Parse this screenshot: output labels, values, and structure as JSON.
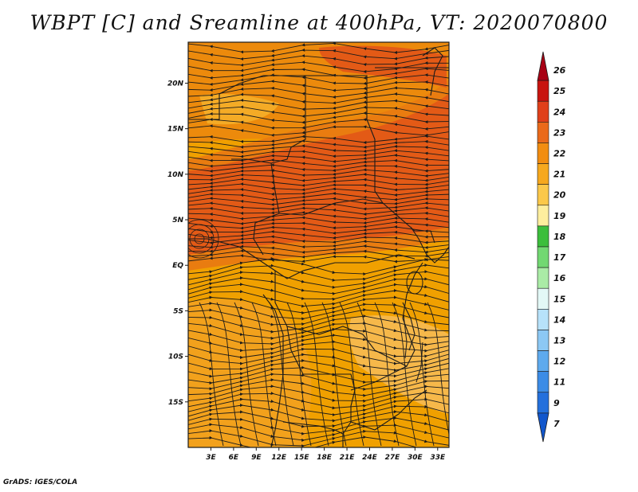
{
  "title": "WBPT [C] and Sreamline at 400hPa, VT: 2020070800",
  "footer": "GrADS: IGES/COLA",
  "map": {
    "lon_range": [
      0,
      34.5
    ],
    "lat_range": [
      -20,
      24.5
    ],
    "x_ticks": [
      {
        "value": 3,
        "label": "3E"
      },
      {
        "value": 6,
        "label": "6E"
      },
      {
        "value": 9,
        "label": "9E"
      },
      {
        "value": 12,
        "label": "12E"
      },
      {
        "value": 15,
        "label": "15E"
      },
      {
        "value": 18,
        "label": "18E"
      },
      {
        "value": 21,
        "label": "21E"
      },
      {
        "value": 24,
        "label": "24E"
      },
      {
        "value": 27,
        "label": "27E"
      },
      {
        "value": 30,
        "label": "30E"
      },
      {
        "value": 33,
        "label": "33E"
      }
    ],
    "y_ticks": [
      {
        "value": 20,
        "label": "20N"
      },
      {
        "value": 15,
        "label": "15N"
      },
      {
        "value": 10,
        "label": "10N"
      },
      {
        "value": 5,
        "label": "5N"
      },
      {
        "value": 0,
        "label": "EQ"
      },
      {
        "value": -5,
        "label": "5S"
      },
      {
        "value": -10,
        "label": "10S"
      },
      {
        "value": -15,
        "label": "15S"
      }
    ],
    "wbpt_field_colors": {
      "c21_22": "#f0a000",
      "c22_23": "#e97c10",
      "c23_24": "#e35a16",
      "c20_21": "#f4bc40"
    }
  },
  "colorbar": {
    "items": [
      {
        "label": "26",
        "color": "#a80014"
      },
      {
        "label": "25",
        "color": "#c8140f"
      },
      {
        "label": "24",
        "color": "#e0401a"
      },
      {
        "label": "23",
        "color": "#ea6a1a"
      },
      {
        "label": "22",
        "color": "#f28d10"
      },
      {
        "label": "21",
        "color": "#f6a81e"
      },
      {
        "label": "20",
        "color": "#fbc84a"
      },
      {
        "label": "19",
        "color": "#fdee9e"
      },
      {
        "label": "18",
        "color": "#3cbe3c"
      },
      {
        "label": "17",
        "color": "#72d872"
      },
      {
        "label": "16",
        "color": "#aaeba6"
      },
      {
        "label": "15",
        "color": "#e3f8f6"
      },
      {
        "label": "14",
        "color": "#b7e2fa"
      },
      {
        "label": "13",
        "color": "#8cc8f4"
      },
      {
        "label": "12",
        "color": "#5eaaee"
      },
      {
        "label": "11",
        "color": "#3c8ce6"
      },
      {
        "label": "9",
        "color": "#2470dc"
      },
      {
        "label": "7",
        "color": "#1257cc"
      }
    ]
  }
}
